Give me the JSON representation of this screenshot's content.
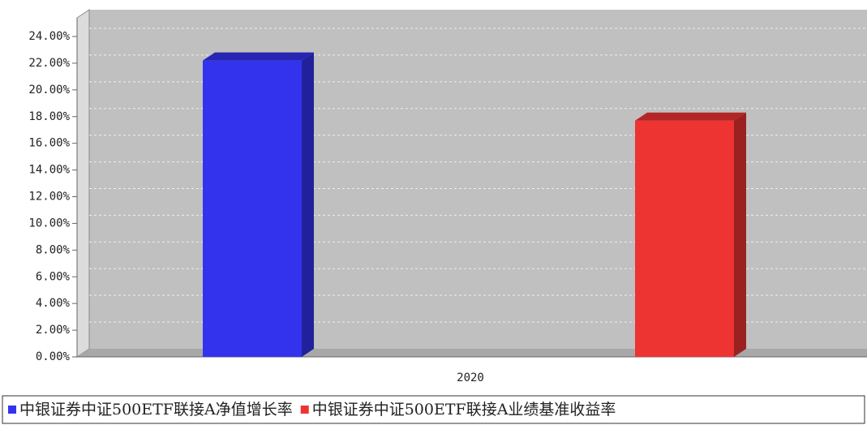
{
  "chart_data": {
    "type": "bar",
    "categories": [
      "2020"
    ],
    "series": [
      {
        "name": "中银证券中证500ETF联接A净值增长率",
        "color": "#3333ee",
        "values": [
          22.2
        ]
      },
      {
        "name": "中银证券中证500ETF联接A业绩基准收益率",
        "color": "#ee3333",
        "values": [
          17.7
        ]
      }
    ],
    "ylim": [
      0,
      24
    ],
    "yticks": [
      {
        "value": 0,
        "label": "0.00%"
      },
      {
        "value": 2,
        "label": "2.00%"
      },
      {
        "value": 4,
        "label": "4.00%"
      },
      {
        "value": 6,
        "label": "6.00%"
      },
      {
        "value": 8,
        "label": "8.00%"
      },
      {
        "value": 10,
        "label": "10.00%"
      },
      {
        "value": 12,
        "label": "12.00%"
      },
      {
        "value": 14,
        "label": "14.00%"
      },
      {
        "value": 16,
        "label": "16.00%"
      },
      {
        "value": 18,
        "label": "18.00%"
      },
      {
        "value": 20,
        "label": "20.00%"
      },
      {
        "value": 22,
        "label": "22.00%"
      },
      {
        "value": 24,
        "label": "24.00%"
      }
    ],
    "grid": true
  }
}
